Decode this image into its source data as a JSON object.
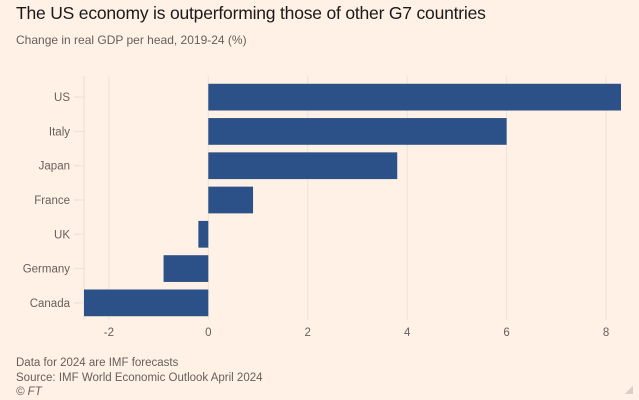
{
  "header": {
    "title": "The US economy is outperforming those of other G7 countries",
    "subtitle": "Change in real GDP per head, 2019-24 (%)"
  },
  "footer": {
    "note": "Data for 2024 are IMF forecasts",
    "source": "Source: IMF World Economic Outlook April 2024",
    "credit": "© FT"
  },
  "colors": {
    "background": "#FFF1E5",
    "bar": "#2C5188",
    "grid": "#EDE3DA",
    "text": "#66605C"
  },
  "chart_data": {
    "type": "bar",
    "orientation": "horizontal",
    "title": "The US economy is outperforming those of other G7 countries",
    "subtitle": "Change in real GDP per head, 2019-24 (%)",
    "xlabel": "",
    "ylabel": "",
    "categories": [
      "US",
      "Italy",
      "Japan",
      "France",
      "UK",
      "Germany",
      "Canada"
    ],
    "values": [
      8.3,
      6.0,
      3.8,
      0.9,
      -0.2,
      -0.9,
      -2.5
    ],
    "xlim": [
      -2.5,
      8.3
    ],
    "xticks": [
      -2,
      0,
      2,
      4,
      6,
      8
    ],
    "xtick_labels": [
      "-2",
      "0",
      "2",
      "4",
      "6",
      "8"
    ],
    "grid": true,
    "legend": "none"
  }
}
